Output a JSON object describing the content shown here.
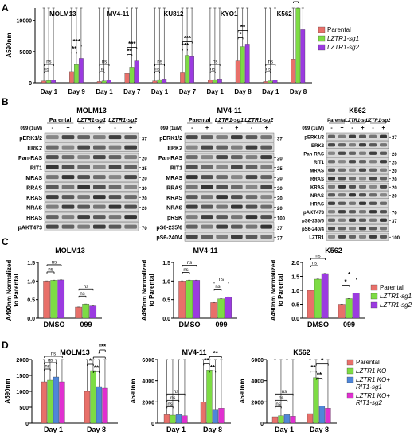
{
  "panels": {
    "A": "A",
    "B": "B",
    "C": "C",
    "D": "D"
  },
  "colors": {
    "parental": "#e8706a",
    "sg1": "#7ddc44",
    "sg2": "#9b3be0",
    "rit1_sg1": "#4f86d9",
    "rit1_sg2": "#e030d0",
    "blot_bg": "#d9d9d9",
    "band": "#222222"
  },
  "panelA": {
    "ylabel": "A590nm",
    "legend": [
      "Parental",
      "LZTR1-sg1",
      "LZTR1-sg2"
    ],
    "groups": [
      {
        "name": "MOLM13",
        "days": [
          "Day 1",
          "Day 9"
        ]
      },
      {
        "name": "MV4-11",
        "days": [
          "Day 1",
          "Day 7"
        ]
      },
      {
        "name": "KU812",
        "days": [
          "Day 1",
          "Day 7"
        ]
      },
      {
        "name": "KYO1",
        "days": [
          "Day 1",
          "Day 8"
        ]
      },
      {
        "name": "K562",
        "days": [
          "Day 1",
          "Day 8"
        ]
      }
    ],
    "sig": [
      "ns",
      "ns",
      "**",
      "***",
      "ns",
      "ns",
      "**",
      "***",
      "ns",
      "ns",
      "***",
      "***",
      "ns",
      "ns",
      "*",
      "**",
      "ns",
      "ns",
      "**",
      "**"
    ]
  },
  "chart_data": [
    {
      "type": "bar",
      "title": "",
      "ylabel": "A590nm",
      "ylim": [
        0,
        12000
      ],
      "yticks": [
        "0",
        "5000",
        "10000"
      ],
      "categories": [
        "MOLM13 Day 1",
        "MOLM13 Day 9",
        "MV4-11 Day 1",
        "MV4-11 Day 7",
        "KU812 Day 1",
        "KU812 Day 7",
        "KYO1 Day 1",
        "KYO1 Day 8",
        "K562 Day 1",
        "K562 Day 8"
      ],
      "series": [
        {
          "name": "Parental",
          "values": [
            300,
            1800,
            200,
            1500,
            300,
            1600,
            400,
            3500,
            200,
            3800
          ]
        },
        {
          "name": "LZTR1-sg1",
          "values": [
            350,
            2900,
            300,
            2500,
            500,
            4400,
            500,
            5800,
            300,
            12000
          ]
        },
        {
          "name": "LZTR1-sg2",
          "values": [
            400,
            3900,
            400,
            3500,
            600,
            4200,
            600,
            6200,
            400,
            8500
          ]
        }
      ]
    },
    {
      "type": "bar",
      "title": "MOLM13",
      "ylabel": "A490nm Normalized to Parental",
      "ylim": [
        0,
        1.5
      ],
      "yticks": [
        "0.0",
        "0.5",
        "1.0",
        "1.5"
      ],
      "categories": [
        "DMSO",
        "099"
      ],
      "series": [
        {
          "name": "Parental",
          "values": [
            1.0,
            0.3
          ]
        },
        {
          "name": "LZTR1-sg1",
          "values": [
            1.02,
            0.38
          ]
        },
        {
          "name": "LZTR1-sg2",
          "values": [
            1.03,
            0.33
          ]
        }
      ]
    },
    {
      "type": "bar",
      "title": "MV4-11",
      "ylabel": "A490nm Normalized to Parental",
      "ylim": [
        0,
        1.5
      ],
      "yticks": [
        "0.0",
        "0.5",
        "1.0",
        "1.5"
      ],
      "categories": [
        "DMSO",
        "099"
      ],
      "series": [
        {
          "name": "Parental",
          "values": [
            1.0,
            0.42
          ]
        },
        {
          "name": "LZTR1-sg1",
          "values": [
            1.02,
            0.52
          ]
        },
        {
          "name": "LZTR1-sg2",
          "values": [
            1.02,
            0.57
          ]
        }
      ]
    },
    {
      "type": "bar",
      "title": "K562",
      "ylabel": "A490nm Normalized to Parental",
      "ylim": [
        0,
        2.0
      ],
      "yticks": [
        "0.0",
        "0.5",
        "1.0",
        "1.5",
        "2.0"
      ],
      "categories": [
        "DMSO",
        "099"
      ],
      "series": [
        {
          "name": "Parental",
          "values": [
            1.0,
            0.5
          ]
        },
        {
          "name": "LZTR1-sg1",
          "values": [
            1.4,
            0.7
          ]
        },
        {
          "name": "LZTR1-sg2",
          "values": [
            1.6,
            0.9
          ]
        }
      ]
    },
    {
      "type": "bar",
      "title": "MOLM13",
      "ylabel": "A590nm",
      "ylim": [
        0,
        2000
      ],
      "yticks": [
        "0",
        "500",
        "1000",
        "1500",
        "2000"
      ],
      "categories": [
        "Day 1",
        "Day 8"
      ],
      "series": [
        {
          "name": "Parental",
          "values": [
            1300,
            1000
          ]
        },
        {
          "name": "LZTR1 KO",
          "values": [
            1350,
            1650
          ]
        },
        {
          "name": "LZTR1 KO+ RIT1-sg1",
          "values": [
            1450,
            1150
          ]
        },
        {
          "name": "LZTR1 KO+ RIT1-sg2",
          "values": [
            1300,
            1100
          ]
        }
      ]
    },
    {
      "type": "bar",
      "title": "MV4-11",
      "ylabel": "A590nm",
      "ylim": [
        0,
        6000
      ],
      "yticks": [
        "0",
        "2000",
        "4000",
        "6000"
      ],
      "categories": [
        "Day 1",
        "Day 8"
      ],
      "series": [
        {
          "name": "Parental",
          "values": [
            800,
            2000
          ]
        },
        {
          "name": "LZTR1 KO",
          "values": [
            750,
            5000
          ]
        },
        {
          "name": "LZTR1 KO+ RIT1-sg1",
          "values": [
            800,
            1300
          ]
        },
        {
          "name": "LZTR1 KO+ RIT1-sg2",
          "values": [
            700,
            1400
          ]
        }
      ]
    },
    {
      "type": "bar",
      "title": "K562",
      "ylabel": "A590nm",
      "ylim": [
        0,
        6000
      ],
      "yticks": [
        "0",
        "2000",
        "4000",
        "6000"
      ],
      "categories": [
        "Day 1",
        "Day 8"
      ],
      "series": [
        {
          "name": "Parental",
          "values": [
            600,
            900
          ]
        },
        {
          "name": "LZTR1 KO",
          "values": [
            700,
            4300
          ]
        },
        {
          "name": "LZTR1 KO+ RIT1-sg1",
          "values": [
            800,
            1600
          ]
        },
        {
          "name": "LZTR1 KO+ RIT1-sg2",
          "values": [
            650,
            1400
          ]
        }
      ]
    }
  ],
  "panelB": {
    "blots": [
      {
        "title": "MOLM13",
        "drug": "099 (1uM)",
        "groups": [
          "Parental",
          "LZTR1-sg1",
          "LZTR1-sg2"
        ],
        "signs": [
          "-",
          "+",
          "-",
          "+",
          "-",
          "+"
        ],
        "rows": [
          "pERK1/2",
          "ERK2",
          "Pan-RAS",
          "RIT1",
          "MRAS",
          "RRAS",
          "KRAS",
          "NRAS",
          "HRAS",
          "pAKT473"
        ],
        "mw": [
          "37",
          "",
          "20",
          "25",
          "20",
          "20",
          "20",
          "20",
          "",
          "70"
        ]
      },
      {
        "title": "MV4-11",
        "drug": "099 (1uM)",
        "groups": [
          "Parental",
          "LZTR1-sg1",
          "LZTR1-sg2"
        ],
        "signs": [
          "-",
          "+",
          "-",
          "+",
          "-",
          "+"
        ],
        "rows": [
          "pERK1/2",
          "ERK2",
          "Pan-RAS",
          "RIT1",
          "MRAS",
          "RRAS",
          "KRAS",
          "NRAS",
          "pRSK",
          "pS6-235/6",
          "pS6-240/4"
        ],
        "mw": [
          "37",
          "",
          "20",
          "25",
          "20",
          "20",
          "20",
          "20",
          "100",
          "37",
          "37"
        ]
      },
      {
        "title": "K562",
        "drug": "099 (1uM)",
        "groups": [
          "Parental",
          "LZTR1-sg1",
          "LZTR1-sg2"
        ],
        "signs": [
          "-",
          "+",
          "-",
          "+",
          "-",
          "+"
        ],
        "rows": [
          "pERK1/2",
          "ERK2",
          "Pan-RAS",
          "RIT1",
          "MRAS",
          "RRAS",
          "KRAS",
          "NRAS",
          "HRAS",
          "pAKT473",
          "pS6-235/6",
          "pS6-240/4",
          "LZTR1"
        ],
        "mw": [
          "37",
          "",
          "20",
          "25",
          "20",
          "20",
          "20",
          "20",
          "",
          "70",
          "37",
          "",
          "100"
        ]
      }
    ]
  },
  "panelC": {
    "legend": [
      "Parental",
      "LZTR1-sg1",
      "LZTR1-sg2"
    ],
    "sig": [
      [
        "ns",
        "ns",
        "ns",
        "ns"
      ],
      [
        "ns",
        "ns",
        "ns",
        "ns"
      ],
      [
        "ns",
        "ns",
        "*",
        "*"
      ]
    ]
  },
  "panelD": {
    "legend": [
      "Parental",
      "LZTR1 KO",
      "LZTR1 KO+ RIT1-sg1",
      "LZTR1 KO+ RIT1-sg2"
    ],
    "sig": [
      [
        "ns",
        "ns",
        "ns",
        "*",
        "**",
        "*",
        "***"
      ],
      [
        "ns",
        "ns",
        "ns",
        "**",
        "**",
        "**"
      ],
      [
        "ns",
        "ns",
        "ns",
        "**",
        "**",
        "*"
      ]
    ]
  }
}
